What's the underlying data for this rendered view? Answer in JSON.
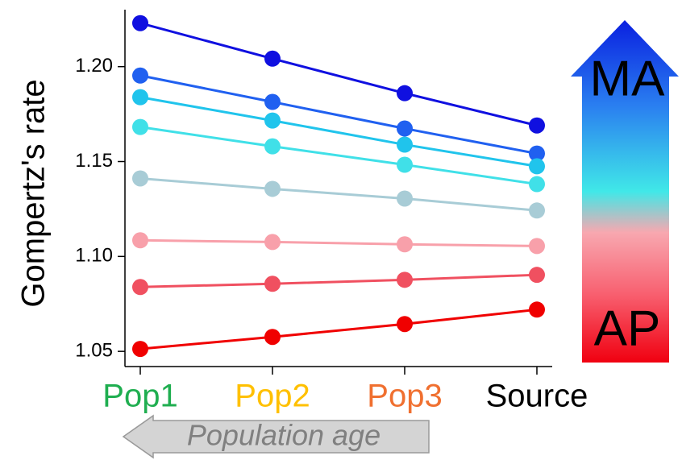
{
  "chart_data": {
    "type": "line",
    "y_label": "Gompertz's rate",
    "categories": [
      "Pop1",
      "Pop2",
      "Pop3",
      "Source"
    ],
    "category_colors": [
      "#1fae50",
      "#ffc000",
      "#f07030",
      "#000000"
    ],
    "series": [
      {
        "color": "#1010e0",
        "values": [
          1.2229,
          1.2042,
          1.186,
          1.169
        ]
      },
      {
        "color": "#2060f0",
        "values": [
          1.1953,
          1.1814,
          1.1674,
          1.1542
        ]
      },
      {
        "color": "#20c4ec",
        "values": [
          1.1839,
          1.1716,
          1.1589,
          1.1475
        ]
      },
      {
        "color": "#40e0e8",
        "values": [
          1.1682,
          1.158,
          1.1483,
          1.1381
        ]
      },
      {
        "color": "#a8ccd6",
        "values": [
          1.1411,
          1.1356,
          1.1305,
          1.1242
        ]
      },
      {
        "color": "#f8a0aa",
        "values": [
          1.1085,
          1.1076,
          1.1064,
          1.1055
        ]
      },
      {
        "color": "#f05060",
        "values": [
          1.0839,
          1.0856,
          1.0877,
          1.0903
        ]
      },
      {
        "color": "#f00000",
        "values": [
          1.0513,
          1.0576,
          1.0644,
          1.072
        ]
      }
    ],
    "ylim": [
      1.042,
      1.23
    ],
    "yticks": [
      1.05,
      {
        "value": 1.1,
        "label": "1.10"
      },
      1.15,
      {
        "value": 1.2,
        "label": "1.20"
      }
    ],
    "annotations": {
      "top": "MA",
      "bottom": "AP",
      "arrow": "Population age"
    }
  }
}
